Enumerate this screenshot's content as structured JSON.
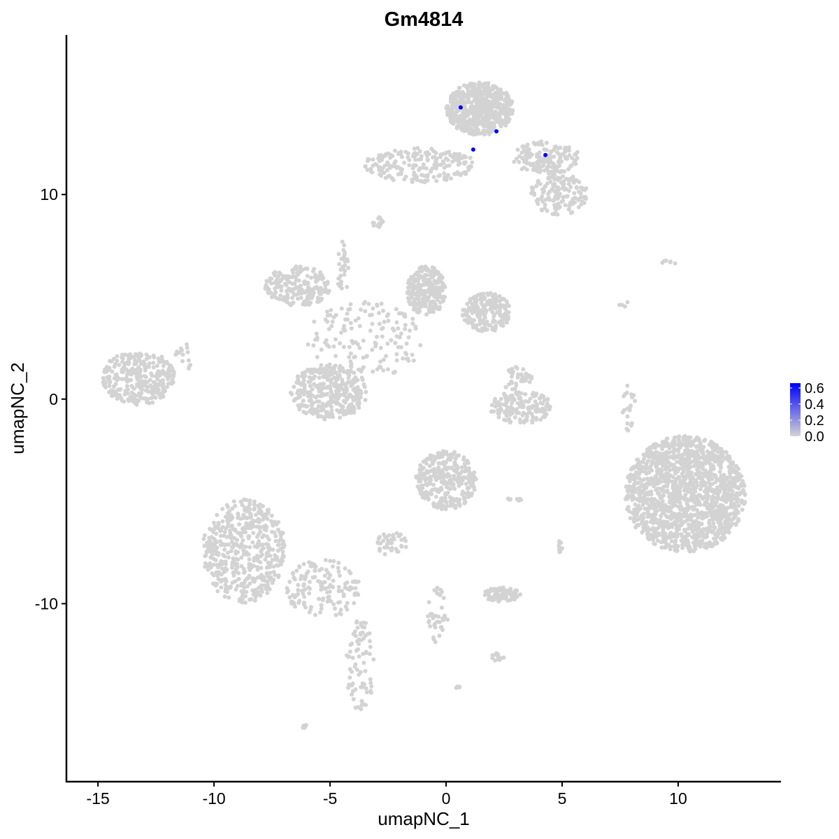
{
  "chart_data": {
    "type": "scatter",
    "title": "Gm4814",
    "xlabel": "umapNC_1",
    "ylabel": "umapNC_2",
    "xlim": [
      -16.36,
      14.43
    ],
    "ylim": [
      -18.7,
      17.8
    ],
    "xticks": [
      -15,
      -10,
      -5,
      0,
      5,
      10
    ],
    "yticks": [
      -10,
      0,
      10
    ],
    "xtick_labels": [
      "-15",
      "-10",
      "-5",
      "0",
      "5",
      "10"
    ],
    "ytick_labels": [
      "-10",
      "0",
      "10"
    ],
    "grid": false,
    "legend": {
      "placement": "right",
      "type": "colorbar",
      "range": [
        0,
        0.66
      ],
      "ticks": [
        0.0,
        0.2,
        0.4,
        0.6
      ],
      "tick_labels": [
        "0.0",
        "0.2",
        "0.4",
        "0.6"
      ],
      "low_color": "#D3D3D3",
      "high_color": "#0000FF"
    },
    "background_cells_expression": 0,
    "background_cell_regions": [
      {
        "x": [
          0.0,
          2.9
        ],
        "y": [
          12.9,
          15.5
        ],
        "n": 600
      },
      {
        "x": [
          2.8,
          5.8
        ],
        "y": [
          11.0,
          12.6
        ],
        "n": 150
      },
      {
        "x": [
          3.6,
          6.1
        ],
        "y": [
          9.0,
          11.0
        ],
        "n": 150
      },
      {
        "x": [
          -3.5,
          1.3
        ],
        "y": [
          10.6,
          12.3
        ],
        "n": 200
      },
      {
        "x": [
          -3.2,
          -2.7
        ],
        "y": [
          8.4,
          8.9
        ],
        "n": 15
      },
      {
        "x": [
          -7.8,
          -5.0
        ],
        "y": [
          4.5,
          6.5
        ],
        "n": 200
      },
      {
        "x": [
          -1.7,
          0.0
        ],
        "y": [
          4.1,
          6.5
        ],
        "n": 250
      },
      {
        "x": [
          0.7,
          2.8
        ],
        "y": [
          3.3,
          5.2
        ],
        "n": 200
      },
      {
        "x": [
          -6.0,
          -1.0
        ],
        "y": [
          1.0,
          4.8
        ],
        "n": 150
      },
      {
        "x": [
          -4.7,
          -4.2
        ],
        "y": [
          5.0,
          7.7
        ],
        "n": 30
      },
      {
        "x": [
          -6.7,
          -3.4
        ],
        "y": [
          -1.0,
          1.7
        ],
        "n": 350
      },
      {
        "x": [
          -14.8,
          -11.7
        ],
        "y": [
          -0.3,
          2.4
        ],
        "n": 300
      },
      {
        "x": [
          1.9,
          4.6
        ],
        "y": [
          -1.2,
          0.4
        ],
        "n": 150
      },
      {
        "x": [
          2.5,
          3.7
        ],
        "y": [
          0.2,
          1.6
        ],
        "n": 40
      },
      {
        "x": [
          7.7,
          12.9
        ],
        "y": [
          -7.5,
          -1.8
        ],
        "n": 1500
      },
      {
        "x": [
          -1.3,
          1.3
        ],
        "y": [
          -5.4,
          -2.5
        ],
        "n": 300
      },
      {
        "x": [
          -10.5,
          -6.9
        ],
        "y": [
          -10.0,
          -4.9
        ],
        "n": 500
      },
      {
        "x": [
          -6.9,
          -3.7
        ],
        "y": [
          -10.7,
          -7.8
        ],
        "n": 150
      },
      {
        "x": [
          -4.3,
          -3.1
        ],
        "y": [
          -15.3,
          -10.7
        ],
        "n": 80
      },
      {
        "x": [
          1.6,
          3.2
        ],
        "y": [
          -9.9,
          -9.2
        ],
        "n": 80
      },
      {
        "x": [
          -3.0,
          -1.7
        ],
        "y": [
          -7.7,
          -6.5
        ],
        "n": 40
      },
      {
        "x": [
          -0.8,
          0.1
        ],
        "y": [
          -12.0,
          -9.2
        ],
        "n": 40
      },
      {
        "x": [
          7.6,
          8.2
        ],
        "y": [
          -1.7,
          0.9
        ],
        "n": 20
      },
      {
        "x": [
          9.3,
          10.0
        ],
        "y": [
          6.6,
          6.8
        ],
        "n": 6
      },
      {
        "x": [
          7.4,
          7.9
        ],
        "y": [
          4.4,
          4.8
        ],
        "n": 4
      },
      {
        "x": [
          1.9,
          2.5
        ],
        "y": [
          -12.8,
          -12.4
        ],
        "n": 15
      },
      {
        "x": [
          -6.2,
          -6.0
        ],
        "y": [
          -16.1,
          -15.9
        ],
        "n": 8
      },
      {
        "x": [
          4.8,
          5.1
        ],
        "y": [
          -7.6,
          -6.9
        ],
        "n": 10
      },
      {
        "x": [
          2.5,
          3.3
        ],
        "y": [
          -5.0,
          -4.8
        ],
        "n": 8
      },
      {
        "x": [
          -11.7,
          -10.8
        ],
        "y": [
          1.4,
          2.8
        ],
        "n": 15
      },
      {
        "x": [
          0.4,
          0.6
        ],
        "y": [
          -14.2,
          -14.0
        ],
        "n": 4
      }
    ],
    "expressing_cells": [
      {
        "x": 0.63,
        "y": 14.26,
        "value": 0.66
      },
      {
        "x": 2.17,
        "y": 13.09,
        "value": 0.66
      },
      {
        "x": 1.17,
        "y": 12.2,
        "value": 0.66
      },
      {
        "x": 4.28,
        "y": 11.93,
        "value": 0.66
      }
    ]
  }
}
